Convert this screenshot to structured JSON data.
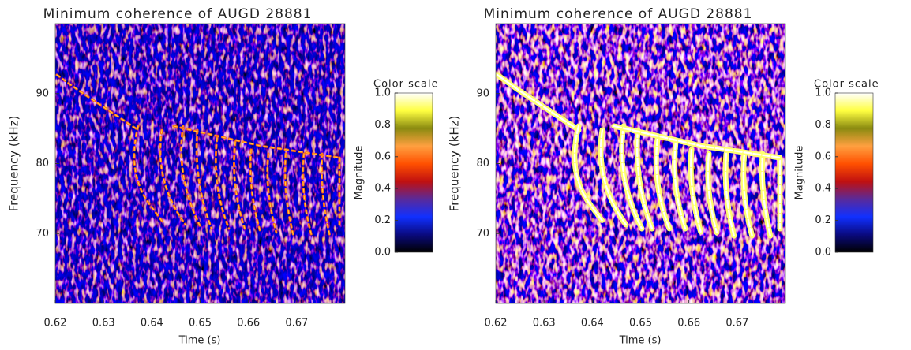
{
  "chart_data": [
    {
      "type": "heatmap",
      "title": "Minimum coherence of AUGD 28881",
      "xlabel": "Time (s)",
      "ylabel": "Frequency (kHz)",
      "xlim": [
        0.62,
        0.68
      ],
      "xticks": [
        0.62,
        0.63,
        0.64,
        0.65,
        0.66,
        0.67
      ],
      "ylim": [
        60,
        100
      ],
      "yticks": [
        70,
        80,
        90
      ],
      "colorbar": {
        "title": "Color scale",
        "label": "Magnitude",
        "clim": [
          0,
          1
        ],
        "ticks": [
          {
            "value": 0,
            "label": "0.0"
          },
          0.2,
          0.4,
          0.6,
          0.8,
          {
            "value": 1,
            "label": "1.0"
          }
        ],
        "colormap": [
          "#000000",
          "#0a0a80",
          "#1030ff",
          "#5a2a9a",
          "#c01010",
          "#ff5000",
          "#ffa040",
          "#8a8a10",
          "#ffff40",
          "#ffffff"
        ]
      }
    },
    {
      "type": "heatmap",
      "title": "Minimum coherence of AUGD 28881",
      "xlabel": "Time (s)",
      "ylabel": "Frequency (kHz)",
      "xlim": [
        0.62,
        0.68
      ],
      "xticks": [
        0.62,
        0.63,
        0.64,
        0.65,
        0.66,
        0.67
      ],
      "ylim": [
        60,
        100
      ],
      "yticks": [
        70,
        80,
        90
      ],
      "colorbar": {
        "title": "Color scale",
        "label": "Magnitude",
        "clim": [
          0,
          1
        ],
        "ticks": [
          {
            "value": 0,
            "label": "0.0"
          },
          0.2,
          0.4,
          0.6,
          0.8,
          {
            "value": 1,
            "label": "1.0"
          }
        ],
        "colormap": [
          "#000000",
          "#0a0a80",
          "#1030ff",
          "#5a2a9a",
          "#c01010",
          "#ff5000",
          "#ffa040",
          "#8a8a10",
          "#ffff40",
          "#ffffff"
        ]
      }
    }
  ]
}
